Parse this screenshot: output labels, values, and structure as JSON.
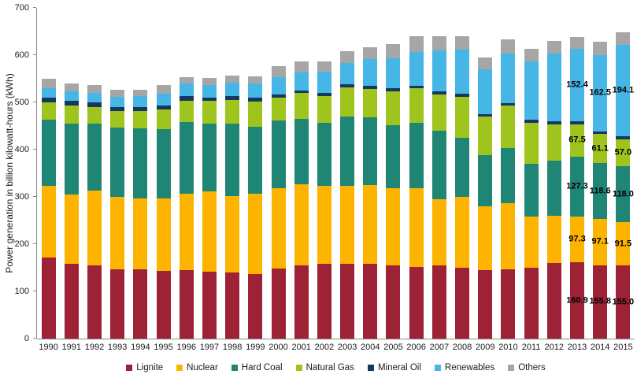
{
  "chart_data": {
    "type": "bar",
    "stacked": true,
    "title": "",
    "xlabel": "",
    "ylabel": "Power generation in billion kilowatt-hours (kWh)",
    "ylim": [
      0,
      700
    ],
    "yticks": [
      0,
      100,
      200,
      300,
      400,
      500,
      600,
      700
    ],
    "grid": false,
    "legend_position": "bottom",
    "categories": [
      "1990",
      "1991",
      "1992",
      "1993",
      "1994",
      "1995",
      "1996",
      "1997",
      "1998",
      "1999",
      "2000",
      "2001",
      "2002",
      "2003",
      "2004",
      "2005",
      "2006",
      "2007",
      "2008",
      "2009",
      "2010",
      "2011",
      "2012",
      "2013",
      "2014",
      "2015"
    ],
    "series": [
      {
        "name": "Lignite",
        "color": "#9d2235",
        "values": [
          170.9,
          158.3,
          154.5,
          146.6,
          146.1,
          142.6,
          144.3,
          141.7,
          139.4,
          136.0,
          148.3,
          154.8,
          158.0,
          158.2,
          158.0,
          154.8,
          151.1,
          155.1,
          150.6,
          145.6,
          145.9,
          150.1,
          160.7,
          160.9,
          155.8,
          155.0
        ]
      },
      {
        "name": "Nuclear",
        "color": "#fdb400",
        "values": [
          152.5,
          147.4,
          158.8,
          153.5,
          151.2,
          154.1,
          161.6,
          170.3,
          161.6,
          170.0,
          169.6,
          171.3,
          164.8,
          165.1,
          167.1,
          163.0,
          167.4,
          140.5,
          148.8,
          134.9,
          140.6,
          108.0,
          99.5,
          97.3,
          97.1,
          91.5
        ]
      },
      {
        "name": "Hard Coal",
        "color": "#1f8575",
        "values": [
          140.8,
          149.8,
          141.9,
          147.1,
          147.8,
          147.1,
          152.7,
          143.1,
          153.4,
          143.1,
          143.1,
          138.4,
          134.6,
          146.5,
          142.8,
          134.1,
          137.9,
          145.1,
          125.6,
          107.9,
          117.0,
          112.4,
          116.4,
          127.3,
          118.6,
          118.0
        ]
      },
      {
        "name": "Natural Gas",
        "color": "#9ec41d",
        "values": [
          35.9,
          37.1,
          34.4,
          33.9,
          36.5,
          41.1,
          45.6,
          47.5,
          51.1,
          52.3,
          49.2,
          55.2,
          56.3,
          61.4,
          61.3,
          71.0,
          73.4,
          75.9,
          86.7,
          80.9,
          89.3,
          86.1,
          76.4,
          67.5,
          61.1,
          57.0
        ]
      },
      {
        "name": "Mineral Oil",
        "color": "#17375e",
        "values": [
          10.8,
          10.9,
          9.8,
          8.9,
          8.6,
          9.1,
          9.3,
          8.2,
          8.6,
          8.1,
          5.9,
          6.1,
          6.7,
          6.7,
          5.9,
          7.2,
          6.0,
          6.2,
          6.2,
          5.9,
          5.6,
          6.8,
          6.6,
          7.2,
          5.7,
          6.2
        ]
      },
      {
        "name": "Renewables",
        "color": "#45b6e6",
        "values": [
          19.7,
          19.2,
          21.4,
          22.2,
          23.8,
          25.2,
          25.9,
          26.4,
          28.3,
          30.5,
          37.9,
          38.2,
          44.8,
          45.8,
          56.6,
          62.5,
          71.7,
          87.6,
          93.3,
          94.9,
          104.8,
          123.5,
          143.5,
          152.4,
          162.5,
          194.1
        ]
      },
      {
        "name": "Others",
        "color": "#a6a6a6",
        "values": [
          19.3,
          17.5,
          16.7,
          14.8,
          13.5,
          17.6,
          13.7,
          15.2,
          14.4,
          15.5,
          22.6,
          22.4,
          21.5,
          25.1,
          25.8,
          30.0,
          32.1,
          30.2,
          29.5,
          25.5,
          29.9,
          26.2,
          27.1,
          26.1,
          27.0,
          26.3
        ]
      }
    ],
    "data_labels": {
      "shown_for_categories": [
        "2013",
        "2014",
        "2015"
      ],
      "shown_for_series": [
        "Lignite",
        "Nuclear",
        "Hard Coal",
        "Natural Gas",
        "Renewables"
      ],
      "shown_values": {
        "2013": [
          "160.9",
          "97.3",
          "127.3",
          "67.5",
          "152.4"
        ],
        "2014": [
          "155.8",
          "97.1",
          "118.6",
          "61.1",
          "162.5"
        ],
        "2015": [
          "155.0",
          "91.5",
          "118.0",
          "57.0",
          "194.1"
        ]
      }
    },
    "colors": {
      "axis": "#898989",
      "tick_text": "#1a1a1a",
      "data_label_text": "#000000"
    }
  }
}
